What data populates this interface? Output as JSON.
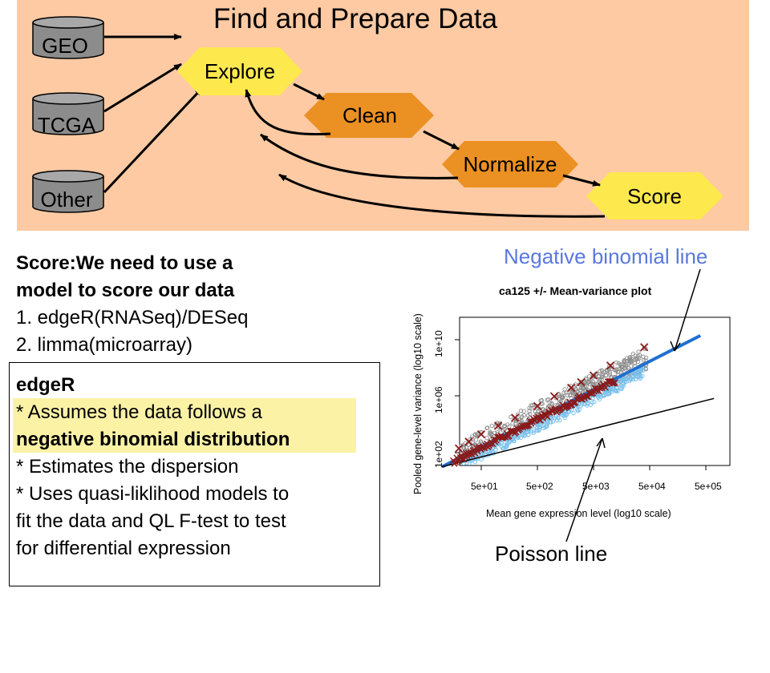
{
  "workflow": {
    "title": "Find and Prepare Data",
    "sources": [
      {
        "id": "geo",
        "label": "GEO"
      },
      {
        "id": "tcga",
        "label": "TCGA"
      },
      {
        "id": "other",
        "label": "Other"
      }
    ],
    "steps": [
      {
        "id": "explore",
        "label": "Explore",
        "color": "#fde84e"
      },
      {
        "id": "clean",
        "label": "Clean",
        "color": "#eb9022"
      },
      {
        "id": "normalize",
        "label": "Normalize",
        "color": "#eb9022"
      },
      {
        "id": "score",
        "label": "Score",
        "color": "#fde84e"
      }
    ],
    "panel_color": "#fdcaa3"
  },
  "score_text": {
    "heading_1": "Score:We need to use a",
    "heading_2": "model to score our data",
    "item_1": "1. edgeR(RNASeq)/DESeq",
    "item_2": "2. limma(microarray)"
  },
  "edger": {
    "title": "edgeR",
    "line_1": "* Assumes the data follows a",
    "line_2": "negative binomial distribution",
    "line_3": "* Estimates the dispersion",
    "line_4": "* Uses quasi-liklihood models to",
    "line_5": "fit the data and QL F-test to test",
    "line_6": "for differential expression",
    "highlight_color": "#fbf2a6"
  },
  "chart_data": {
    "type": "scatter",
    "title": "ca125 +/- Mean-variance plot",
    "xlabel": "Mean gene expression level (log10 scale)",
    "ylabel": "Pooled gene-level variance (log10 scale)",
    "x_scale": "log10",
    "y_scale": "log10",
    "x_ticks": [
      "5e+01",
      "5e+02",
      "5e+03",
      "5e+04",
      "5e+05"
    ],
    "y_ticks": [
      "1e+02",
      "1e+06",
      "1e+10"
    ],
    "xlim": [
      10,
      700000
    ],
    "ylim": [
      10,
      100000000000
    ],
    "series_colors": {
      "raw_variance": "#8c8c8c",
      "pooled_variance": "#78c0ec",
      "binned_x": "#8b1a1a",
      "nb_line": "#1f6fd0",
      "poisson_line": "#000000"
    },
    "nb_line": {
      "x": [
        10,
        400000
      ],
      "y": [
        10,
        20000000000
      ]
    },
    "poisson_line": {
      "x": [
        10,
        700000
      ],
      "y": [
        10,
        700000
      ]
    },
    "binned_points": [
      {
        "x": 20,
        "y": 200
      },
      {
        "x": 30,
        "y": 600
      },
      {
        "x": 50,
        "y": 2000
      },
      {
        "x": 100,
        "y": 8000
      },
      {
        "x": 200,
        "y": 30000
      },
      {
        "x": 500,
        "y": 200000
      },
      {
        "x": 1000,
        "y": 1000000
      },
      {
        "x": 2000,
        "y": 4000000
      },
      {
        "x": 3000,
        "y": 10000000
      },
      {
        "x": 5000,
        "y": 30000000
      },
      {
        "x": 10000,
        "y": 150000000
      },
      {
        "x": 40000,
        "y": 3000000000
      }
    ]
  },
  "annotations": {
    "nb_label": "Negative binomial line",
    "poisson_label": "Poisson line",
    "nb_label_color": "#5a78e0"
  }
}
